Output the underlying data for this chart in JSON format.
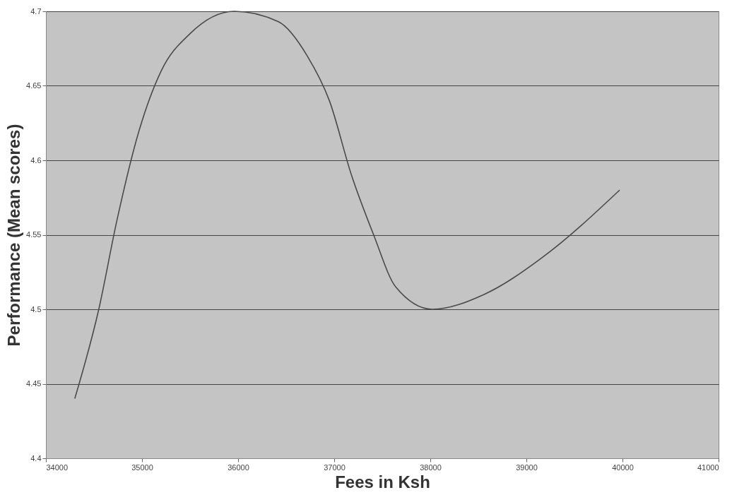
{
  "chart_data": {
    "type": "line",
    "xlabel": "Fees in Ksh",
    "ylabel": "Performance (Mean scores)",
    "x": [
      34300,
      34550,
      34740,
      34970,
      35200,
      35500,
      35960,
      36420,
      36720,
      36950,
      37180,
      37410,
      37640,
      38020,
      38560,
      39170,
      39970
    ],
    "series": [
      {
        "color": "#4a4a4a",
        "values": [
          4.44,
          4.5,
          4.56,
          4.62,
          4.66,
          4.685,
          4.7,
          4.693,
          4.67,
          4.64,
          4.59,
          4.55,
          4.515,
          4.5,
          4.51,
          4.535,
          4.58
        ]
      }
    ],
    "xlim": [
      34000,
      41000
    ],
    "xticks": [
      34000,
      35000,
      36000,
      37000,
      38000,
      39000,
      40000,
      41000
    ],
    "ylim": [
      4.4,
      4.7
    ],
    "yticks": [
      4.4,
      4.45,
      4.5,
      4.55,
      4.6,
      4.65,
      4.7
    ],
    "grid": "y",
    "marker": "none",
    "line_style": "solid"
  }
}
